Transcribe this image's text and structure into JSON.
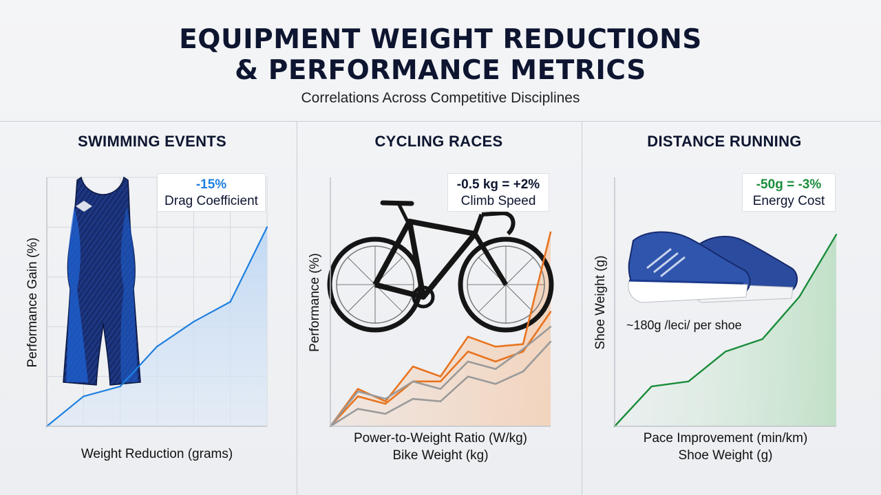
{
  "title": [
    "EQUIPMENT WEIGHT REDUCTIONS",
    "& PERFORMANCE METRICS"
  ],
  "subtitle": "Correlations Across Competitive Disciplines",
  "colors": {
    "swim": "#1e7fe0",
    "cycle_orange": "#e8731f",
    "cycle_gray": "#9a9a9a",
    "run": "#1a8c3a",
    "title": "#0d1530"
  },
  "panels": [
    {
      "title": "SWIMMING EVENTS",
      "callout_value": "-15%",
      "callout_label": "Drag Coefficient",
      "ylabel": "Performance Gain (%)",
      "xlabel": "Weight Reduction (grams)",
      "illustration": "swimsuit-icon"
    },
    {
      "title": "CYCLING RACES",
      "callout_value": "-0.5 kg = +2%",
      "callout_label": "Climb Speed",
      "ylabel": "Performance (%)",
      "xlabel": "Power-to-Weight Ratio (W/kg)",
      "xlabel2": "Bike Weight (kg)",
      "illustration": "road-bike-icon"
    },
    {
      "title": "DISTANCE RUNNING",
      "callout_value": "-50g = -3%",
      "callout_label": "Energy Cost",
      "ylabel": "Shoe Weight (g)",
      "xlabel": "Pace Improvement (min/km)",
      "xlabel2": "Shoe Weight (g)",
      "annotation": "~180g /leci/ per shoe",
      "illustration": "running-shoes-icon"
    }
  ],
  "chart_data": [
    {
      "type": "area",
      "title": "SWIMMING EVENTS",
      "xlabel": "Weight Reduction (grams)",
      "ylabel": "Performance Gain (%)",
      "x": [
        0,
        1,
        2,
        3,
        4,
        5,
        6
      ],
      "xlim": [
        0,
        6
      ],
      "ylim": [
        0,
        5
      ],
      "grid": true,
      "series": [
        {
          "values": [
            0,
            0.6,
            0.8,
            1.6,
            2.1,
            2.5,
            4.0
          ]
        }
      ]
    },
    {
      "type": "line",
      "title": "CYCLING RACES",
      "xlabel": "Power-to-Weight Ratio (W/kg)",
      "ylabel": "Performance (%)",
      "x": [
        0,
        1,
        2,
        3,
        4,
        5,
        6,
        7,
        8
      ],
      "xlim": [
        0,
        8
      ],
      "ylim": [
        0,
        10
      ],
      "grid": false,
      "series": [
        {
          "color": "#e8731f",
          "values": [
            0,
            1.5,
            1.0,
            2.4,
            2.0,
            3.6,
            3.2,
            3.3,
            7.8
          ]
        },
        {
          "color": "#e8731f",
          "values": [
            0,
            1.2,
            0.9,
            1.8,
            1.8,
            3.0,
            2.6,
            3.0,
            4.6
          ]
        },
        {
          "color": "#9a9a9a",
          "values": [
            0,
            1.4,
            1.1,
            1.8,
            1.5,
            2.6,
            2.3,
            3.1,
            4.0
          ]
        },
        {
          "color": "#9a9a9a",
          "values": [
            0,
            0.7,
            0.5,
            1.1,
            1.0,
            2.0,
            1.7,
            2.2,
            3.4
          ]
        }
      ]
    },
    {
      "type": "area",
      "title": "DISTANCE RUNNING",
      "xlabel": "Pace Improvement (min/km)",
      "ylabel": "Shoe Weight (g)",
      "x": [
        0,
        1,
        2,
        3,
        4,
        5,
        6
      ],
      "xlim": [
        0,
        6
      ],
      "ylim": [
        0,
        10
      ],
      "grid": false,
      "series": [
        {
          "color": "#1a8c3a",
          "values": [
            0,
            1.6,
            1.8,
            3.0,
            3.5,
            5.2,
            7.7
          ]
        }
      ]
    }
  ]
}
